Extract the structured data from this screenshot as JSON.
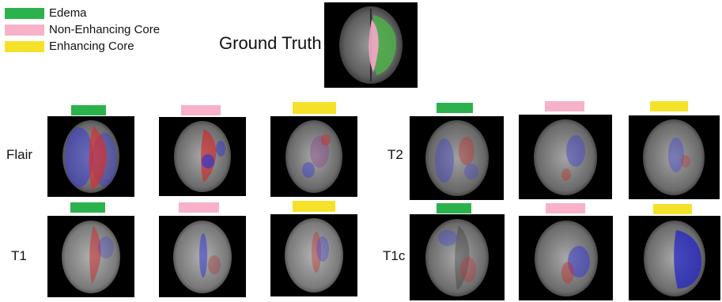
{
  "legend": [
    {
      "label": "Edema",
      "color": "#2bb24c"
    },
    {
      "label": "Non-Enhancing Core",
      "color": "#f7b1c9"
    },
    {
      "label": "Enhancing Core",
      "color": "#f5e12a"
    }
  ],
  "ground_truth_label": "Ground Truth",
  "modalities": [
    {
      "label": "Flair"
    },
    {
      "label": "T1"
    },
    {
      "label": "T2"
    },
    {
      "label": "T1c"
    }
  ]
}
